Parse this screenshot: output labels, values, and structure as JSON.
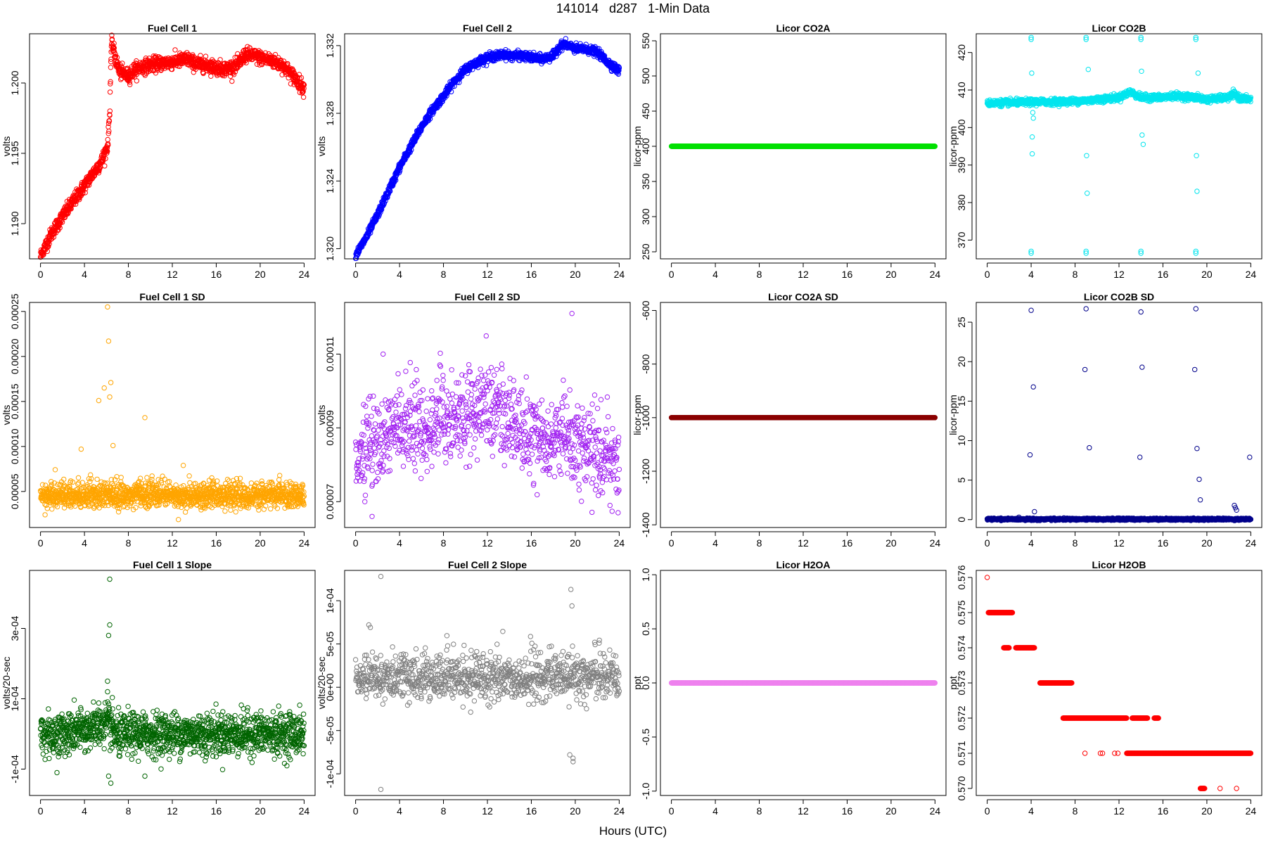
{
  "page_title": "141014   d287   1-Min Data",
  "x_axis_label": "Hours (UTC)",
  "chart_data": [
    {
      "type": "scatter",
      "title": "Fuel Cell 1",
      "ylabel": "volts",
      "color": "#ff0000",
      "xlim": [
        -1,
        25
      ],
      "ylim": [
        1.1875,
        1.2035
      ],
      "xticks": [
        0,
        4,
        8,
        12,
        16,
        20,
        24
      ],
      "yticks": [
        1.19,
        1.195,
        1.2
      ],
      "ytick_labels": [
        "1.190",
        "1.195",
        "1.200"
      ],
      "series_shape": "trend",
      "x": [
        0,
        0.5,
        1,
        2,
        3,
        4,
        5,
        5.6,
        6.1,
        6.3,
        6.4,
        6.5,
        6.8,
        7.2,
        8,
        8.5,
        9,
        10,
        12,
        13.4,
        14,
        15,
        16,
        17,
        18,
        18.6,
        19,
        20,
        21,
        22,
        23,
        24
      ],
      "y": [
        1.1877,
        1.1885,
        1.1893,
        1.1905,
        1.1916,
        1.1927,
        1.1938,
        1.1945,
        1.1955,
        1.1978,
        1.2015,
        1.203,
        1.2018,
        1.2008,
        1.2005,
        1.2009,
        1.2011,
        1.2013,
        1.2015,
        1.2017,
        1.2014,
        1.2013,
        1.2011,
        1.201,
        1.2013,
        1.202,
        1.202,
        1.2018,
        1.2016,
        1.2013,
        1.2005,
        1.1996
      ],
      "noise": 0.00025,
      "point_count": 1440
    },
    {
      "type": "scatter",
      "title": "Fuel Cell 2",
      "ylabel": "volts",
      "color": "#0000ff",
      "xlim": [
        -1,
        25
      ],
      "ylim": [
        1.3194,
        1.3327
      ],
      "xticks": [
        0,
        4,
        8,
        12,
        16,
        20,
        24
      ],
      "yticks": [
        1.32,
        1.324,
        1.328,
        1.332
      ],
      "ytick_labels": [
        "1.320",
        "1.324",
        "1.328",
        "1.332"
      ],
      "series_shape": "trend",
      "x": [
        0,
        1,
        2,
        3,
        4,
        5,
        6,
        7,
        8,
        9,
        10,
        11,
        12,
        13,
        13.5,
        14,
        15,
        16,
        17,
        18,
        18.5,
        19,
        20,
        21,
        22,
        23,
        24
      ],
      "y": [
        1.3196,
        1.3207,
        1.322,
        1.3234,
        1.3248,
        1.326,
        1.3272,
        1.3282,
        1.329,
        1.3299,
        1.3306,
        1.331,
        1.3313,
        1.3314,
        1.3315,
        1.3314,
        1.3314,
        1.3313,
        1.3312,
        1.3314,
        1.3319,
        1.3321,
        1.3318,
        1.3318,
        1.3316,
        1.331,
        1.3305
      ],
      "noise": 0.00012,
      "point_count": 1440
    },
    {
      "type": "scatter",
      "title": "Licor CO2A",
      "ylabel": "licor-ppm",
      "color": "#00e000",
      "xlim": [
        -1,
        25
      ],
      "ylim": [
        240,
        560
      ],
      "xticks": [
        0,
        4,
        8,
        12,
        16,
        20,
        24
      ],
      "yticks": [
        250,
        300,
        350,
        400,
        450,
        500,
        550
      ],
      "ytick_labels": [
        "250",
        "300",
        "350",
        "400",
        "450",
        "500",
        "550"
      ],
      "series_shape": "constant",
      "value": 400,
      "point_count": 1440
    },
    {
      "type": "scatter",
      "title": "Licor CO2B",
      "ylabel": "licor-ppm",
      "color": "#00e5ee",
      "xlim": [
        -1,
        25
      ],
      "ylim": [
        365,
        425
      ],
      "xticks": [
        0,
        4,
        8,
        12,
        16,
        20,
        24
      ],
      "yticks": [
        370,
        380,
        390,
        400,
        410,
        420
      ],
      "ytick_labels": [
        "370",
        "380",
        "390",
        "400",
        "410",
        "420"
      ],
      "series_shape": "baseline_with_spikes",
      "baseline": 407,
      "noise": 0.4,
      "x": [
        0,
        4,
        8,
        9,
        12,
        13,
        14,
        16,
        17,
        19,
        20,
        22,
        22.5,
        23,
        24
      ],
      "y": [
        406.5,
        406.8,
        407,
        407.2,
        408,
        409.5,
        408,
        408,
        408.5,
        408,
        407.5,
        408,
        409,
        407.8,
        407.5
      ],
      "spike_times": [
        4,
        9,
        14,
        19
      ],
      "spikes_x": [
        4,
        4,
        4,
        4,
        4.05,
        4.1,
        4.1,
        4.15,
        4.2,
        9,
        9,
        9,
        9,
        9.05,
        9.1,
        9.2,
        14,
        14,
        14,
        14,
        14.05,
        14.1,
        14.2,
        19,
        19,
        19,
        19,
        19.05,
        19.1,
        19.2
      ],
      "spikes_y": [
        424,
        423.5,
        367,
        366.5,
        414.5,
        397.5,
        393,
        404,
        402.5,
        424,
        423.5,
        367,
        366.5,
        392.5,
        382.5,
        415.5,
        424,
        423.5,
        367,
        366.5,
        415,
        398,
        395.5,
        424,
        423.5,
        367,
        366.5,
        392.5,
        383,
        414.5
      ],
      "point_count": 1440
    },
    {
      "type": "scatter",
      "title": "Fuel Cell 1 SD",
      "ylabel": "volts",
      "color": "#ffa500",
      "xlim": [
        -1,
        25
      ],
      "ylim": [
        1e-05,
        0.00026
      ],
      "xticks": [
        0,
        4,
        8,
        12,
        16,
        20,
        24
      ],
      "yticks": [
        5e-05,
        0.0001,
        0.00015,
        0.0002,
        0.00025
      ],
      "ytick_labels": [
        "0.00005",
        "0.00010",
        "0.00015",
        "0.00020",
        "0.00025"
      ],
      "series_shape": "noise_band",
      "baseline": 4.2e-05,
      "noise": 9e-06,
      "spikes_x": [
        3.7,
        5.3,
        5.8,
        6.1,
        6.2,
        6.3,
        6.4,
        6.6,
        9.5,
        13
      ],
      "spikes_y": [
        9.7e-05,
        0.000151,
        0.000165,
        0.000255,
        0.000217,
        0.000155,
        0.000171,
        0.000101,
        0.000132,
        7.9e-05
      ],
      "point_count": 1440
    },
    {
      "type": "scatter",
      "title": "Fuel Cell 2 SD",
      "ylabel": "volts",
      "color": "#a020f0",
      "xlim": [
        -1,
        25
      ],
      "ylim": [
        6.3e-05,
        0.000124
      ],
      "xticks": [
        0,
        4,
        8,
        12,
        16,
        20,
        24
      ],
      "yticks": [
        7e-05,
        9e-05,
        0.00011
      ],
      "ytick_labels": [
        "0.00007",
        "0.00009",
        "0.00011"
      ],
      "series_shape": "noise_band",
      "baseline": 8.5e-05,
      "noise": 7.5e-06,
      "x": [
        0,
        4,
        8,
        12,
        13,
        16,
        20,
        24
      ],
      "y": [
        8e-05,
        8.7e-05,
        8.8e-05,
        9.2e-05,
        9.2e-05,
        8.5e-05,
        8.3e-05,
        7.9e-05
      ],
      "spikes_x": [
        2.5,
        19.7,
        1.5,
        23.9
      ],
      "spikes_y": [
        0.00011,
        0.000121,
        6.6e-05,
        6.7e-05
      ],
      "point_count": 1000
    },
    {
      "type": "scatter",
      "title": "Licor CO2A SD",
      "ylabel": "licor-ppm",
      "color": "#8b0000",
      "xlim": [
        -1,
        25
      ],
      "ylim": [
        -1410,
        -570
      ],
      "xticks": [
        0,
        4,
        8,
        12,
        16,
        20,
        24
      ],
      "yticks": [
        -1400,
        -1200,
        -1000,
        -800,
        -600
      ],
      "ytick_labels": [
        "-1400",
        "-1200",
        "-1000",
        "-800",
        "-600"
      ],
      "series_shape": "constant",
      "value": -1000,
      "point_count": 1440
    },
    {
      "type": "scatter",
      "title": "Licor CO2B SD",
      "ylabel": "licor-ppm",
      "color": "#00008b",
      "xlim": [
        -1,
        25
      ],
      "ylim": [
        -1,
        27.5
      ],
      "xticks": [
        0,
        4,
        8,
        12,
        16,
        20,
        24
      ],
      "yticks": [
        0,
        5,
        10,
        15,
        20,
        25
      ],
      "ytick_labels": [
        "0",
        "5",
        "10",
        "15",
        "20",
        "25"
      ],
      "series_shape": "baseline_with_spikes",
      "baseline": 0.05,
      "noise": 0.06,
      "spikes_x": [
        4,
        4.2,
        3.9,
        4.3,
        9,
        8.9,
        9.3,
        14,
        14.1,
        13.9,
        19,
        18.9,
        19.1,
        19.3,
        19.4,
        22.5,
        22.6,
        22.7,
        23.9
      ],
      "spikes_y": [
        26.5,
        16.8,
        8.2,
        1.0,
        26.7,
        19,
        9.1,
        26.3,
        19.3,
        7.9,
        26.7,
        19.0,
        9.0,
        5.1,
        2.5,
        1.8,
        1.5,
        1.2,
        7.9
      ],
      "point_count": 1440
    },
    {
      "type": "scatter",
      "title": "Fuel Cell 1 Slope",
      "ylabel": "volts/20-sec",
      "color": "#006400",
      "xlim": [
        -1,
        25
      ],
      "ylim": [
        -0.000175,
        0.000465
      ],
      "xticks": [
        0,
        4,
        8,
        12,
        16,
        20,
        24
      ],
      "yticks": [
        -0.0001,
        0.0001,
        0.0003
      ],
      "ytick_labels": [
        "-1e-04",
        "1e-04",
        "3e-04"
      ],
      "series_shape": "noise_band",
      "baseline": 0.0,
      "noise": 3e-05,
      "x": [
        0,
        2,
        4,
        5,
        6,
        6.5,
        7,
        8,
        12,
        24
      ],
      "y": [
        0.0,
        0.0,
        1e-05,
        2e-05,
        3e-05,
        2e-05,
        -1e-05,
        0.0,
        0.0,
        0.0
      ],
      "spikes_x": [
        6.3,
        6.3,
        6.2,
        6.1,
        6.4,
        6.2,
        6.5,
        6.1,
        1.5,
        9.5
      ],
      "spikes_y": [
        0.00044,
        0.00031,
        0.00028,
        0.00015,
        -0.00014,
        -0.00012,
        -4e-05,
        0.00012,
        -0.00011,
        -0.00012
      ],
      "point_count": 1440
    },
    {
      "type": "scatter",
      "title": "Fuel Cell 2 Slope",
      "ylabel": "volts/20-sec",
      "color": "#808080",
      "xlim": [
        -1,
        25
      ],
      "ylim": [
        -0.000125,
        0.000135
      ],
      "xticks": [
        0,
        4,
        8,
        12,
        16,
        20,
        24
      ],
      "yticks": [
        -0.0001,
        -5e-05,
        0,
        5e-05,
        0.0001
      ],
      "ytick_labels": [
        "-1e-04",
        "-5e-05",
        "0e+00",
        "5e-05",
        "1e-04"
      ],
      "series_shape": "noise_band",
      "baseline": 5e-06,
      "noise": 1.8e-05,
      "spikes_x": [
        2.3,
        2.3,
        1.2,
        19.6,
        19.7,
        19.8,
        19.5,
        19.8
      ],
      "spikes_y": [
        0.000128,
        -0.000118,
        7.2e-05,
        0.000113,
        9.4e-05,
        -8.2e-05,
        -7.8e-05,
        -8.6e-05
      ],
      "point_count": 1000
    },
    {
      "type": "scatter",
      "title": "Licor H2OA",
      "ylabel": "ppt",
      "color": "#ee82ee",
      "xlim": [
        -1,
        25
      ],
      "ylim": [
        -1.04,
        1.04
      ],
      "xticks": [
        0,
        4,
        8,
        12,
        16,
        20,
        24
      ],
      "yticks": [
        -1.0,
        -0.5,
        0.0,
        0.5,
        1.0
      ],
      "ytick_labels": [
        "-1.0",
        "-0.5",
        "0.0",
        "0.5",
        "1.0"
      ],
      "series_shape": "constant",
      "value": 0.0,
      "point_count": 1440
    },
    {
      "type": "scatter",
      "title": "Licor H2OB",
      "ylabel": "ppt",
      "color": "#ff0000",
      "xlim": [
        -1,
        25
      ],
      "ylim": [
        0.5698,
        0.5762
      ],
      "xticks": [
        0,
        4,
        8,
        12,
        16,
        20,
        24
      ],
      "yticks": [
        0.57,
        0.571,
        0.572,
        0.573,
        0.574,
        0.575,
        0.576
      ],
      "ytick_labels": [
        "0.570",
        "0.571",
        "0.572",
        "0.573",
        "0.574",
        "0.575",
        "0.576"
      ],
      "series_shape": "steps",
      "segments": [
        [
          0.1,
          2.3,
          0.575
        ],
        [
          1.5,
          2.0,
          0.574
        ],
        [
          2.6,
          4.3,
          0.574
        ],
        [
          4.8,
          7.7,
          0.573
        ],
        [
          6.9,
          12.7,
          0.572
        ],
        [
          13.2,
          14.6,
          0.572
        ],
        [
          15.2,
          15.6,
          0.572
        ],
        [
          12.7,
          24,
          0.571
        ],
        [
          19.4,
          19.8,
          0.57
        ]
      ],
      "extra_x": [
        0,
        8.9,
        10.3,
        10.5,
        11.6,
        11.9,
        21.2,
        22.7
      ],
      "extra_y": [
        0.576,
        0.571,
        0.571,
        0.571,
        0.571,
        0.571,
        0.57,
        0.57
      ]
    }
  ]
}
